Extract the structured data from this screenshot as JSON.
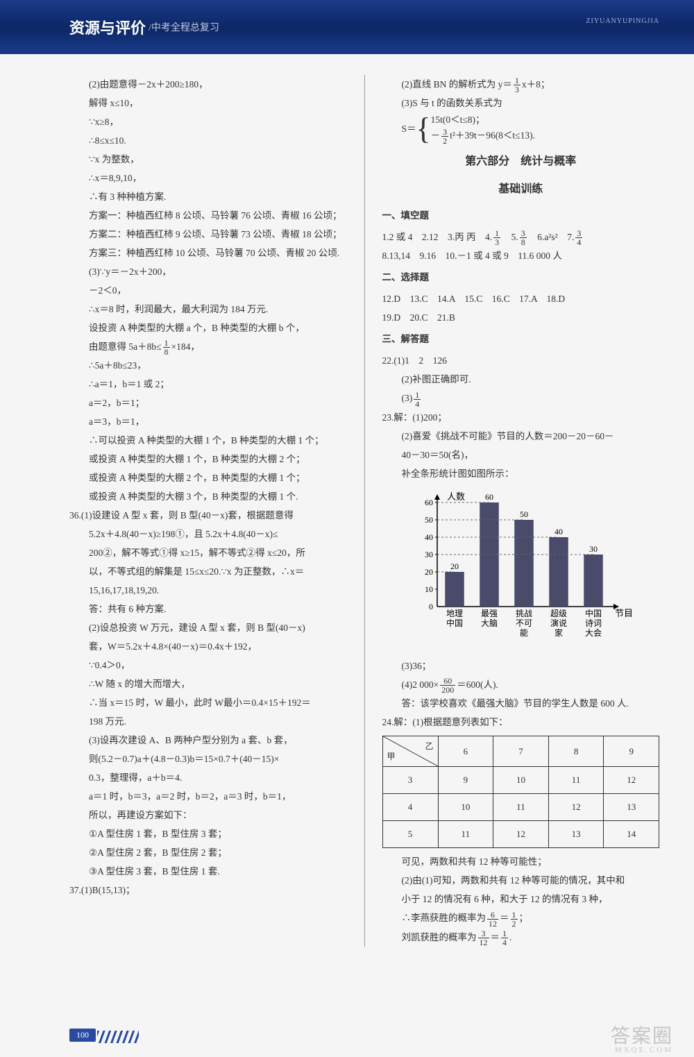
{
  "header": {
    "title": "资源与评价",
    "subtitle": "/中考全程总复习",
    "pinyin": "ZIYUANYUPINGJIA"
  },
  "left": {
    "l1": "(2)由题意得－2x＋200≥180，",
    "l2": "解得 x≤10，",
    "l3": "∵x≥8，",
    "l4": "∴8≤x≤10.",
    "l5": "∵x 为整数，",
    "l6": "∴x＝8,9,10，",
    "l7": "∴有 3 种种植方案.",
    "l8": "方案一：种植西红柿 8 公顷、马铃薯 76 公顷、青椒 16 公顷；",
    "l9": "方案二：种植西红柿 9 公顷、马铃薯 73 公顷、青椒 18 公顷；",
    "l10": "方案三：种植西红柿 10 公顷、马铃薯 70 公顷、青椒 20 公顷.",
    "l11": "(3)∵y＝－2x＋200，",
    "l12": "－2＜0，",
    "l13": "∴x＝8 时，利润最大，最大利润为 184 万元.",
    "l14": "设投资 A 种类型的大棚 a 个，B 种类型的大棚 b 个，",
    "l15a": "由题意得 5a＋8b≤",
    "l15b": "×184，",
    "l16": "∴5a＋8b≤23，",
    "l17": "∴a＝1，b＝1 或 2；",
    "l18": "a＝2，b＝1；",
    "l19": "a＝3，b＝1，",
    "l20": "∴可以投资 A 种类型的大棚 1 个，B 种类型的大棚 1 个；",
    "l21": "或投资 A 种类型的大棚 1 个，B 种类型的大棚 2 个；",
    "l22": "或投资 A 种类型的大棚 2 个，B 种类型的大棚 1 个；",
    "l23": "或投资 A 种类型的大棚 3 个，B 种类型的大棚 1 个.",
    "l24": "36.(1)设建设 A 型 x 套，则 B 型(40－x)套，根据题意得",
    "l25": "5.2x＋4.8(40－x)≥198①，且 5.2x＋4.8(40－x)≤",
    "l26": "200②，解不等式①得 x≥15，解不等式②得 x≤20，所",
    "l27": "以，不等式组的解集是 15≤x≤20.∵x 为正整数，∴x＝",
    "l28": "15,16,17,18,19,20.",
    "l29": "答：共有 6 种方案.",
    "l30": "(2)设总投资 W 万元，建设 A 型 x 套，则 B 型(40－x)",
    "l31": "套，W＝5.2x＋4.8×(40－x)＝0.4x＋192，",
    "l32": "∵0.4＞0，",
    "l33": "∴W 随 x 的增大而增大，",
    "l34": "∴当 x＝15 时，W 最小，此时 W最小＝0.4×15＋192＝",
    "l35": "198 万元.",
    "l36": "(3)设再次建设 A、B 两种户型分别为 a 套、b 套，",
    "l37": "则(5.2－0.7)a＋(4.8－0.3)b＝15×0.7＋(40－15)×",
    "l38": "0.3，整理得，a＋b＝4.",
    "l39": "a＝1 时，b＝3，a＝2 时，b＝2，a＝3 时，b＝1，",
    "l40": "所以，再建设方案如下：",
    "l41": "①A 型住房 1 套，B 型住房 3 套；",
    "l42": "②A 型住房 2 套，B 型住房 2 套；",
    "l43": "③A 型住房 3 套，B 型住房 1 套.",
    "l44": "37.(1)B(15,13)；"
  },
  "right": {
    "r1a": "(2)直线 BN 的解析式为 y＝",
    "r1b": "x＋8；",
    "r2": "(3)S 与 t 的函数关系式为",
    "r3a": "15t(0＜t≤8)；",
    "r3b_pre": "－",
    "r3b_post": "t²＋39t－96(8＜t≤13).",
    "part6": "第六部分　统计与概率",
    "basic": "基础训练",
    "h1": "一、填空题",
    "f1": "1.2 或 4　2.12　3.丙 丙　4.",
    "f1a": "　5.",
    "f1b": "　6.a²s²　7.",
    "f2": "8.13,14　9.16　10.－1 或 4 或 9　11.6 000 人",
    "h2": "二、选择题",
    "s1": "12.D　13.C　14.A　15.C　16.C　17.A　18.D",
    "s2": "19.D　20.C　21.B",
    "h3": "三、解答题",
    "a22_1": "22.(1)1　2　126",
    "a22_2": "(2)补图正确即可.",
    "a22_3": "(3)",
    "a23_1": "23.解：(1)200；",
    "a23_2": "(2)喜爱《挑战不可能》节目的人数＝200－20－60－",
    "a23_3": "40－30＝50(名)，",
    "a23_4": "补全条形统计图如图所示：",
    "chart": {
      "type": "bar",
      "ylabel": "人数",
      "xlabel": "节目",
      "categories_l1": [
        "地理",
        "最强",
        "挑战",
        "超级",
        "中国"
      ],
      "categories_l2": [
        "中国",
        "大脑",
        "不可",
        "演说",
        "诗词"
      ],
      "categories_l3": [
        "",
        "",
        "能",
        "家",
        "大会"
      ],
      "values": [
        20,
        60,
        50,
        40,
        30
      ],
      "value_labels": [
        "20",
        "60",
        "50",
        "40",
        "30"
      ],
      "yticks": [
        0,
        10,
        20,
        30,
        40,
        50,
        60
      ],
      "bar_color": "#4a4a6a",
      "axis_color": "#000000",
      "grid_dash": "3,3"
    },
    "a23_5": "(3)36；",
    "a23_6a": "(4)2 000×",
    "a23_6b": "＝600(人).",
    "a23_7": "答：该学校喜欢《最强大脑》节目的学生人数是 600 人.",
    "a24_1": "24.解：(1)根据题意列表如下：",
    "table": {
      "diag_a": "乙",
      "diag_b": "甲",
      "cols": [
        "6",
        "7",
        "8",
        "9"
      ],
      "rows": [
        {
          "h": "3",
          "c": [
            "9",
            "10",
            "11",
            "12"
          ]
        },
        {
          "h": "4",
          "c": [
            "10",
            "11",
            "12",
            "13"
          ]
        },
        {
          "h": "5",
          "c": [
            "11",
            "12",
            "13",
            "14"
          ]
        }
      ]
    },
    "a24_2": "可见，两数和共有 12 种等可能性；",
    "a24_3": "(2)由(1)可知，两数和共有 12 种等可能的情况，其中和",
    "a24_4": "小于 12 的情况有 6 种，和大于 12 的情况有 3 种，",
    "a24_5a": "∴李燕获胜的概率为",
    "a24_5b": "＝",
    "a24_5c": "；",
    "a24_6a": "刘凯获胜的概率为",
    "a24_6b": "＝",
    "a24_6c": "."
  },
  "footer": {
    "page": "100"
  },
  "watermark": {
    "main": "答案圈",
    "sub": "MXQE.COM"
  }
}
